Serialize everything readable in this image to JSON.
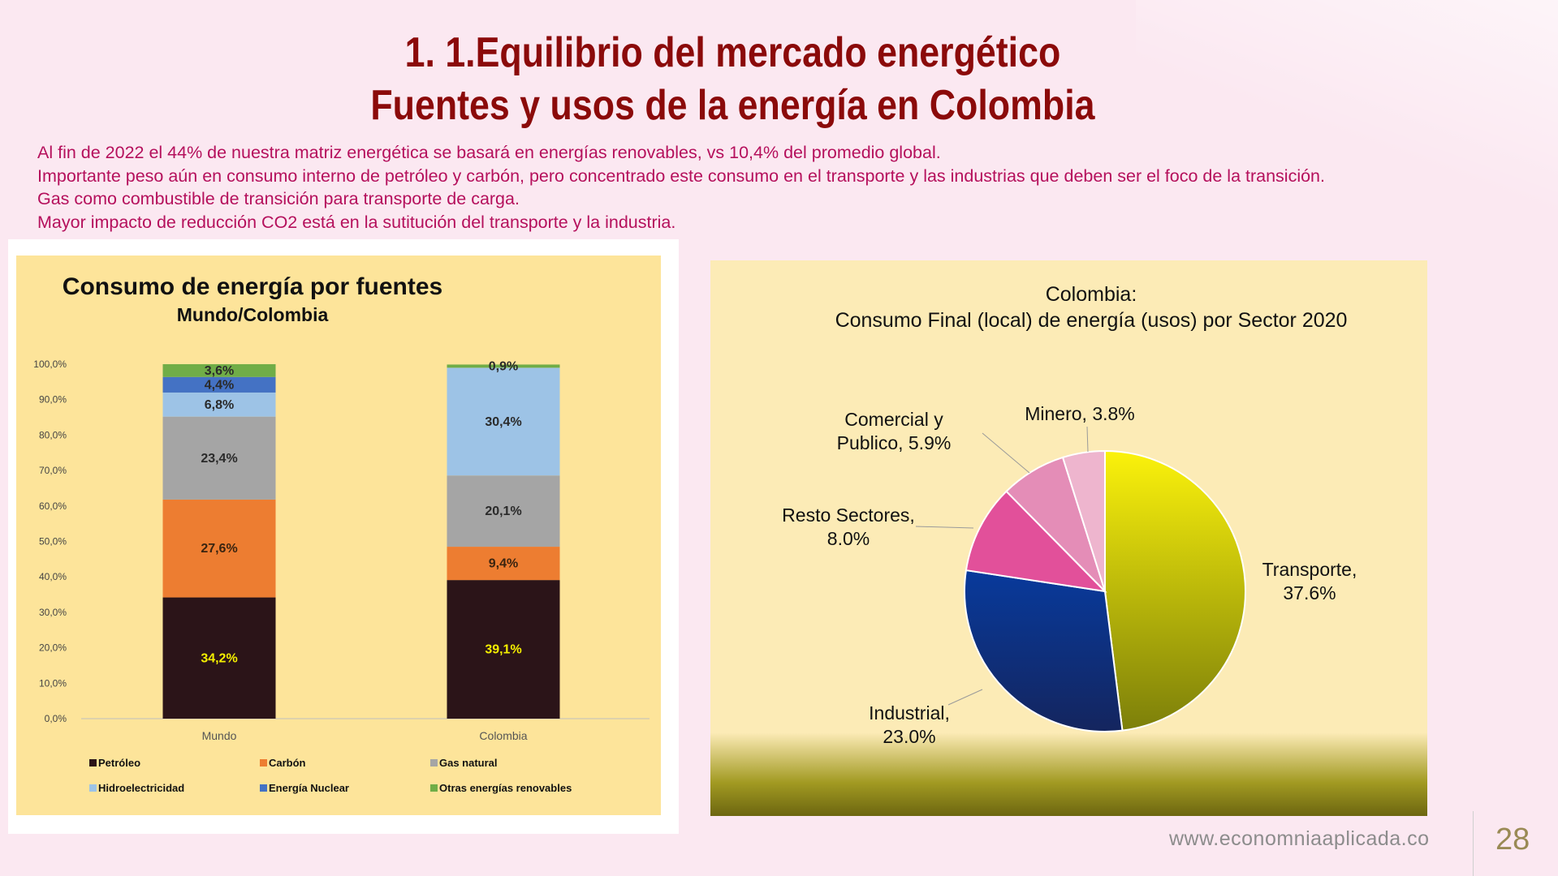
{
  "slide": {
    "title_line1": "1. 1.Equilibrio del mercado energético",
    "title_line2": "Fuentes y usos de la energía en Colombia",
    "bullets": [
      "Al fin de 2022 el 44% de nuestra matriz energética se basará en energías renovables, vs 10,4% del promedio global.",
      "Importante peso aún en consumo interno de petróleo y carbón, pero concentrado este consumo en el transporte y las industrias que deben ser el foco de la transición.",
      "Gas como combustible de transición para transporte de carga.",
      "Mayor impacto de reducción CO2 está en la sutitución del transporte y la industria."
    ],
    "footer_url": "www.economniaaplicada.co",
    "page_number": "28",
    "colors": {
      "title": "#8b0a0a",
      "bullets": "#b5105c",
      "background": "#fbe8f1"
    }
  },
  "chart_data": [
    {
      "type": "bar",
      "stacked": true,
      "title": "Consumo de energía por fuentes",
      "subtitle": "Mundo/Colombia",
      "categories": [
        "Mundo",
        "Colombia"
      ],
      "y_ticks": [
        "0,0%",
        "10,0%",
        "20,0%",
        "30,0%",
        "40,0%",
        "50,0%",
        "60,0%",
        "70,0%",
        "80,0%",
        "90,0%",
        "100,0%"
      ],
      "ylim": [
        0,
        100
      ],
      "legend_position": "bottom",
      "background": "#fde49a",
      "series": [
        {
          "name": "Petróleo",
          "color": "#2b1418",
          "label_color": "#f5f000",
          "values": [
            34.2,
            39.1
          ],
          "labels": [
            "34,2%",
            "39,1%"
          ]
        },
        {
          "name": "Carbón",
          "color": "#ed7d31",
          "label_color": "#3a2410",
          "values": [
            27.6,
            9.4
          ],
          "labels": [
            "27,6%",
            "9,4%"
          ]
        },
        {
          "name": "Gas natural",
          "color": "#a5a5a5",
          "label_color": "#2a2a2a",
          "values": [
            23.4,
            20.1
          ],
          "labels": [
            "23,4%",
            "20,1%"
          ]
        },
        {
          "name": "Hidroelectricidad",
          "color": "#9dc3e6",
          "label_color": "#2a2a2a",
          "values": [
            6.8,
            30.4
          ],
          "labels": [
            "6,8%",
            "30,4%"
          ]
        },
        {
          "name": "Energía Nuclear",
          "color": "#4472c4",
          "label_color": "#2a2a2a",
          "values": [
            4.4,
            0
          ],
          "labels": [
            "4,4%",
            ""
          ]
        },
        {
          "name": "Otras energías renovables",
          "color": "#70ad47",
          "label_color": "#2a2a2a",
          "values": [
            3.6,
            0.9
          ],
          "labels": [
            "3,6%",
            "0,9%"
          ]
        }
      ]
    },
    {
      "type": "pie",
      "title_line1": "Colombia:",
      "title_line2": "Consumo Final (local) de energía (usos) por Sector 2020",
      "background": "#fcebb6",
      "slices": [
        {
          "name": "Transporte",
          "value": 37.6,
          "label_line1": "Transporte,",
          "label_line2": "37.6%",
          "color_top": "#fbf20b",
          "color_bottom": "#7c7f0a"
        },
        {
          "name": "Industrial",
          "value": 23.0,
          "label_line1": "Industrial,",
          "label_line2": "23.0%",
          "color_top": "#083a9c",
          "color_bottom": "#14255e"
        },
        {
          "name": "Resto Sectores",
          "value": 8.0,
          "label_line1": "Resto Sectores,",
          "label_line2": "8.0%",
          "color_top": "#e2509a",
          "color_bottom": "#e2509a"
        },
        {
          "name": "Comercial y Publico",
          "value": 5.9,
          "label_line1": "Comercial y",
          "label_line2": "Publico, 5.9%",
          "color_top": "#e48db7",
          "color_bottom": "#e48db7"
        },
        {
          "name": "Minero",
          "value": 3.8,
          "label_line1": "Minero, 3.8%",
          "label_line2": "",
          "color_top": "#eeb5ce",
          "color_bottom": "#eeb5ce"
        }
      ]
    }
  ]
}
